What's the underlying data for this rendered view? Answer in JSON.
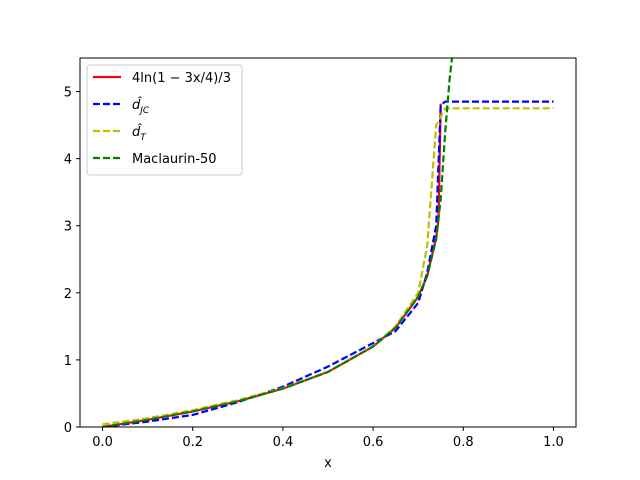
{
  "chart_data": {
    "type": "line",
    "title": "",
    "xlabel": "x",
    "ylabel": "",
    "xlim": [
      -0.05,
      1.05
    ],
    "ylim": [
      0,
      5.5
    ],
    "xticks": [
      "0.0",
      "0.2",
      "0.4",
      "0.6",
      "0.8",
      "1.0"
    ],
    "yticks": [
      "0",
      "1",
      "2",
      "3",
      "4",
      "5"
    ],
    "grid": false,
    "legend_position": "upper-left",
    "series": [
      {
        "name": "4ln(1 − 3x/4)/3",
        "color": "#ff0000",
        "style": "solid",
        "x": [
          0,
          0.1,
          0.2,
          0.3,
          0.4,
          0.5,
          0.6,
          0.65,
          0.7,
          0.72,
          0.74,
          0.745,
          0.75
        ],
        "y": [
          0,
          0.107,
          0.232,
          0.383,
          0.572,
          0.821,
          1.2,
          1.48,
          1.94,
          2.25,
          2.83,
          3.1,
          4.82
        ]
      },
      {
        "name": "d̂JC",
        "color": "#0000ff",
        "style": "dashed",
        "x": [
          0,
          0.1,
          0.2,
          0.3,
          0.4,
          0.5,
          0.6,
          0.65,
          0.7,
          0.72,
          0.74,
          0.75,
          0.76,
          1.0
        ],
        "y": [
          0,
          0.08,
          0.18,
          0.37,
          0.6,
          0.9,
          1.25,
          1.43,
          1.85,
          2.3,
          3.0,
          4.8,
          4.85,
          4.85
        ]
      },
      {
        "name": "d̂T",
        "color": "#bfbf00",
        "style": "dashed",
        "x": [
          0,
          0.1,
          0.2,
          0.3,
          0.4,
          0.5,
          0.6,
          0.65,
          0.7,
          0.72,
          0.74,
          0.76,
          1.0
        ],
        "y": [
          0.04,
          0.13,
          0.25,
          0.4,
          0.58,
          0.82,
          1.2,
          1.5,
          2.0,
          2.7,
          4.5,
          4.75,
          4.75
        ]
      },
      {
        "name": "Maclaurin-50",
        "color": "#008000",
        "style": "dashed",
        "x": [
          0,
          0.1,
          0.2,
          0.3,
          0.4,
          0.5,
          0.6,
          0.65,
          0.7,
          0.72,
          0.74,
          0.75,
          0.76,
          0.77,
          0.775
        ],
        "y": [
          0,
          0.107,
          0.232,
          0.383,
          0.572,
          0.821,
          1.2,
          1.48,
          1.94,
          2.25,
          2.8,
          3.4,
          4.4,
          5.2,
          5.5
        ]
      }
    ]
  }
}
